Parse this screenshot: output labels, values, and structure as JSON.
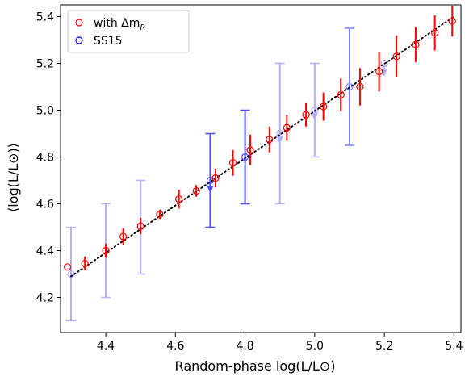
{
  "chart_data": {
    "type": "scatter",
    "xlabel": "Random-phase log(L/L⊙)",
    "ylabel": "⟨log(L/L⊙)⟩",
    "xlim": [
      4.27,
      5.42
    ],
    "ylim": [
      4.05,
      5.45
    ],
    "x_ticks": [
      "4.4",
      "4.6",
      "4.8",
      "5.0",
      "5.2",
      "5.4"
    ],
    "y_ticks": [
      "4.2",
      "4.4",
      "4.6",
      "4.8",
      "5.0",
      "5.2",
      "5.4"
    ],
    "legend": {
      "placement": "top-left",
      "entries": [
        {
          "label": "with Δm_R",
          "color": "#ff0000"
        },
        {
          "label": "SS15",
          "color": "#0000ff"
        }
      ]
    },
    "reference_line": {
      "style": "dotted",
      "color": "#000000",
      "x": [
        4.3,
        5.4
      ],
      "y": [
        4.29,
        5.4
      ]
    },
    "series": [
      {
        "name": "with Δm_R",
        "color": "#ff0000",
        "points": [
          {
            "x": 4.29,
            "y": 4.33,
            "yerr": 0.0
          },
          {
            "x": 4.34,
            "y": 4.345,
            "yerr": 0.03
          },
          {
            "x": 4.4,
            "y": 4.4,
            "yerr": 0.03
          },
          {
            "x": 4.45,
            "y": 4.46,
            "yerr": 0.035
          },
          {
            "x": 4.5,
            "y": 4.505,
            "yerr": 0.035
          },
          {
            "x": 4.555,
            "y": 4.555,
            "yerr": 0.02
          },
          {
            "x": 4.61,
            "y": 4.62,
            "yerr": 0.04
          },
          {
            "x": 4.66,
            "y": 4.655,
            "yerr": 0.025
          },
          {
            "x": 4.715,
            "y": 4.71,
            "yerr": 0.04
          },
          {
            "x": 4.765,
            "y": 4.775,
            "yerr": 0.055
          },
          {
            "x": 4.815,
            "y": 4.83,
            "yerr": 0.065
          },
          {
            "x": 4.87,
            "y": 4.875,
            "yerr": 0.055
          },
          {
            "x": 4.92,
            "y": 4.925,
            "yerr": 0.055
          },
          {
            "x": 4.975,
            "y": 4.98,
            "yerr": 0.05
          },
          {
            "x": 5.025,
            "y": 5.015,
            "yerr": 0.06
          },
          {
            "x": 5.075,
            "y": 5.065,
            "yerr": 0.07
          },
          {
            "x": 5.13,
            "y": 5.1,
            "yerr": 0.08
          },
          {
            "x": 5.185,
            "y": 5.165,
            "yerr": 0.085
          },
          {
            "x": 5.235,
            "y": 5.23,
            "yerr": 0.09
          },
          {
            "x": 5.29,
            "y": 5.28,
            "yerr": 0.075
          },
          {
            "x": 5.345,
            "y": 5.33,
            "yerr": 0.075
          },
          {
            "x": 5.395,
            "y": 5.38,
            "yerr": 0.065
          }
        ]
      },
      {
        "name": "SS15",
        "color": "#0000ff",
        "points": [
          {
            "x": 4.3,
            "y": 4.3,
            "ylow": 4.1,
            "yhigh": 4.5,
            "alpha": 0.3
          },
          {
            "x": 4.4,
            "y": 4.4,
            "ylow": 4.2,
            "yhigh": 4.6,
            "alpha": 0.3
          },
          {
            "x": 4.5,
            "y": 4.5,
            "ylow": 4.3,
            "yhigh": 4.7,
            "alpha": 0.3
          },
          {
            "x": 4.7,
            "y": 4.7,
            "ylow": 4.5,
            "yhigh": 4.9,
            "alpha": 0.7,
            "arrow_at": 4.65
          },
          {
            "x": 4.8,
            "y": 4.8,
            "ylow": 4.6,
            "yhigh": 5.0,
            "alpha": 0.7
          },
          {
            "x": 4.9,
            "y": 4.9,
            "ylow": 4.6,
            "yhigh": 5.2,
            "alpha": 0.3,
            "arrow_at": 4.86
          },
          {
            "x": 5.0,
            "y": 5.0,
            "ylow": 4.8,
            "yhigh": 5.2,
            "alpha": 0.3,
            "arrow_at": 4.96
          },
          {
            "x": 5.1,
            "y": 5.1,
            "ylow": 4.85,
            "yhigh": 5.35,
            "alpha": 0.5
          },
          {
            "x": 5.2,
            "y": 5.2,
            "ylow": 5.2,
            "yhigh": 5.2,
            "alpha": 0.3,
            "arrow_at": 5.15
          }
        ]
      }
    ]
  }
}
